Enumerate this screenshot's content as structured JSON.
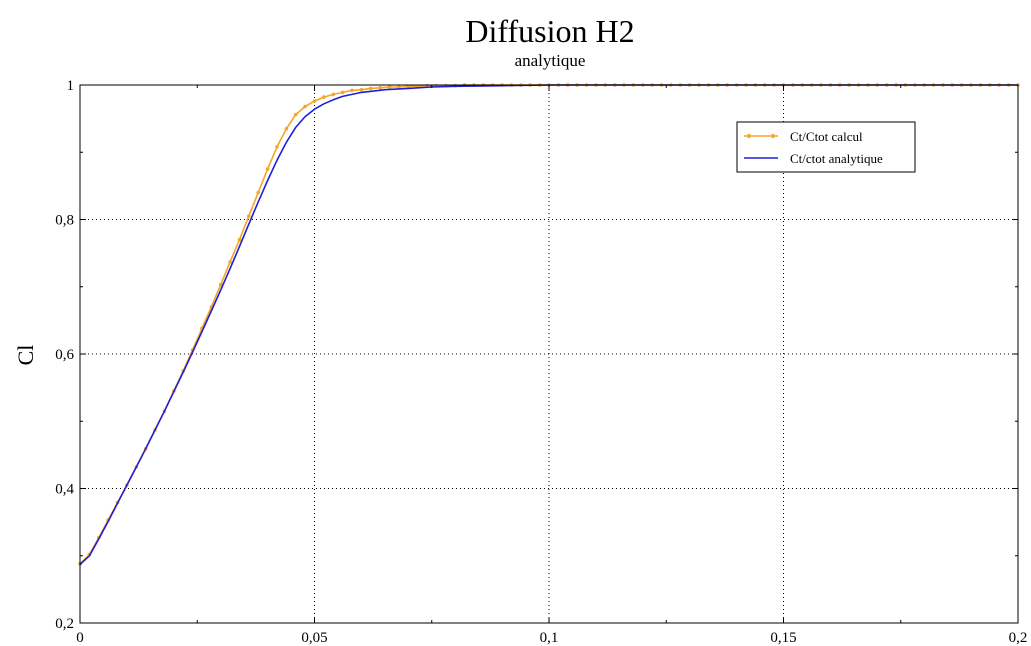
{
  "chart_data": {
    "type": "line",
    "title": "Diffusion H2",
    "subtitle": "analytique",
    "xlabel": "",
    "ylabel": "Cl",
    "xlim": [
      0,
      0.2
    ],
    "ylim": [
      0.2,
      1
    ],
    "grid": true,
    "legend_position": "top-right",
    "x_ticks": [
      {
        "value": 0,
        "label": "0"
      },
      {
        "value": 0.05,
        "label": "0,05"
      },
      {
        "value": 0.1,
        "label": "0,1"
      },
      {
        "value": 0.15,
        "label": "0,15"
      },
      {
        "value": 0.2,
        "label": "0,2"
      }
    ],
    "y_ticks": [
      {
        "value": 0.2,
        "label": "0,2"
      },
      {
        "value": 0.4,
        "label": "0,4"
      },
      {
        "value": 0.6,
        "label": "0,6"
      },
      {
        "value": 0.8,
        "label": "0,8"
      },
      {
        "value": 1,
        "label": "1"
      }
    ],
    "series": [
      {
        "name": "Ct/Ctot calcul",
        "color": "#f5a623",
        "marker": "dot",
        "x": [
          0,
          0.002,
          0.004,
          0.006,
          0.008,
          0.01,
          0.012,
          0.014,
          0.016,
          0.018,
          0.02,
          0.022,
          0.024,
          0.026,
          0.028,
          0.03,
          0.032,
          0.034,
          0.036,
          0.038,
          0.04,
          0.042,
          0.044,
          0.046,
          0.048,
          0.05,
          0.052,
          0.054,
          0.056,
          0.058,
          0.06,
          0.062,
          0.064,
          0.066,
          0.068,
          0.07,
          0.072,
          0.074,
          0.076,
          0.078,
          0.08,
          0.082,
          0.084,
          0.086,
          0.088,
          0.09,
          0.092,
          0.094,
          0.096,
          0.098,
          0.1,
          0.102,
          0.104,
          0.106,
          0.108,
          0.11,
          0.112,
          0.114,
          0.116,
          0.118,
          0.12,
          0.122,
          0.124,
          0.126,
          0.128,
          0.13,
          0.132,
          0.134,
          0.136,
          0.138,
          0.14,
          0.142,
          0.144,
          0.146,
          0.148,
          0.15,
          0.152,
          0.154,
          0.156,
          0.158,
          0.16,
          0.162,
          0.164,
          0.166,
          0.168,
          0.17,
          0.172,
          0.174,
          0.176,
          0.178,
          0.18,
          0.182,
          0.184,
          0.186,
          0.188,
          0.19,
          0.192,
          0.194,
          0.196,
          0.198,
          0.2
        ],
        "y": [
          0.288,
          0.302,
          0.327,
          0.353,
          0.379,
          0.405,
          0.432,
          0.459,
          0.487,
          0.515,
          0.545,
          0.575,
          0.606,
          0.638,
          0.67,
          0.703,
          0.737,
          0.77,
          0.805,
          0.84,
          0.875,
          0.908,
          0.935,
          0.956,
          0.968,
          0.976,
          0.982,
          0.986,
          0.989,
          0.992,
          0.993,
          0.995,
          0.996,
          0.997,
          0.997,
          0.998,
          0.998,
          0.999,
          0.999,
          0.999,
          0.999,
          1,
          1,
          1,
          1,
          1,
          1,
          1,
          1,
          1,
          1,
          1,
          1,
          1,
          1,
          1,
          1,
          1,
          1,
          1,
          1,
          1,
          1,
          1,
          1,
          1,
          1,
          1,
          1,
          1,
          1,
          1,
          1,
          1,
          1,
          1,
          1,
          1,
          1,
          1,
          1,
          1,
          1,
          1,
          1,
          1,
          1,
          1,
          1,
          1,
          1,
          1,
          1,
          1,
          1,
          1,
          1,
          1,
          1,
          1,
          1
        ]
      },
      {
        "name": "Ct/ctot analytique",
        "color": "#1f1fd8",
        "marker": "none",
        "x": [
          0,
          0.002,
          0.004,
          0.006,
          0.008,
          0.01,
          0.012,
          0.014,
          0.016,
          0.018,
          0.02,
          0.022,
          0.024,
          0.026,
          0.028,
          0.03,
          0.032,
          0.034,
          0.036,
          0.038,
          0.04,
          0.042,
          0.044,
          0.046,
          0.048,
          0.05,
          0.052,
          0.054,
          0.056,
          0.058,
          0.06,
          0.065,
          0.07,
          0.075,
          0.08,
          0.09,
          0.1,
          0.11,
          0.12,
          0.14,
          0.16,
          0.18,
          0.2
        ],
        "y": [
          0.287,
          0.3,
          0.325,
          0.351,
          0.378,
          0.405,
          0.432,
          0.459,
          0.487,
          0.515,
          0.544,
          0.573,
          0.603,
          0.633,
          0.664,
          0.695,
          0.727,
          0.76,
          0.793,
          0.826,
          0.858,
          0.888,
          0.915,
          0.937,
          0.953,
          0.964,
          0.972,
          0.978,
          0.983,
          0.986,
          0.989,
          0.993,
          0.995,
          0.997,
          0.998,
          0.999,
          1,
          1,
          1,
          1,
          1,
          1,
          1
        ]
      }
    ]
  }
}
